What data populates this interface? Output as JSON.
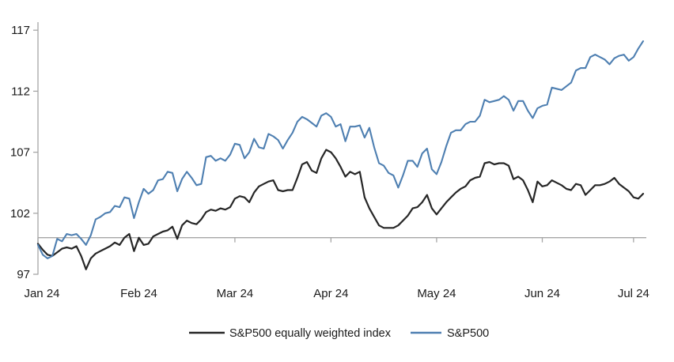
{
  "chart_data": {
    "type": "line",
    "title": "",
    "x_axis": {
      "tick_labels": [
        "Jan 24",
        "Feb 24",
        "Mar 24",
        "Apr 24",
        "May 24",
        "Jun 24",
        "Jul 24"
      ],
      "tick_day_index": [
        0,
        21,
        41,
        61,
        83,
        105,
        124
      ]
    },
    "y_axis": {
      "ticks": [
        97,
        102,
        107,
        112,
        117
      ],
      "range": [
        97,
        117
      ],
      "baseline_value": 100
    },
    "axis_color": "#a6a6a6",
    "legend_position": "bottom",
    "x": [
      "2024-01-02",
      "2024-01-03",
      "2024-01-04",
      "2024-01-05",
      "2024-01-08",
      "2024-01-09",
      "2024-01-10",
      "2024-01-11",
      "2024-01-12",
      "2024-01-16",
      "2024-01-17",
      "2024-01-18",
      "2024-01-19",
      "2024-01-22",
      "2024-01-23",
      "2024-01-24",
      "2024-01-25",
      "2024-01-26",
      "2024-01-29",
      "2024-01-30",
      "2024-01-31",
      "2024-02-01",
      "2024-02-02",
      "2024-02-05",
      "2024-02-06",
      "2024-02-07",
      "2024-02-08",
      "2024-02-09",
      "2024-02-12",
      "2024-02-13",
      "2024-02-14",
      "2024-02-15",
      "2024-02-16",
      "2024-02-20",
      "2024-02-21",
      "2024-02-22",
      "2024-02-23",
      "2024-02-26",
      "2024-02-27",
      "2024-02-28",
      "2024-02-29",
      "2024-03-01",
      "2024-03-04",
      "2024-03-05",
      "2024-03-06",
      "2024-03-07",
      "2024-03-08",
      "2024-03-11",
      "2024-03-12",
      "2024-03-13",
      "2024-03-14",
      "2024-03-15",
      "2024-03-18",
      "2024-03-19",
      "2024-03-20",
      "2024-03-21",
      "2024-03-22",
      "2024-03-25",
      "2024-03-26",
      "2024-03-27",
      "2024-03-28",
      "2024-04-01",
      "2024-04-02",
      "2024-04-03",
      "2024-04-04",
      "2024-04-05",
      "2024-04-08",
      "2024-04-09",
      "2024-04-10",
      "2024-04-11",
      "2024-04-12",
      "2024-04-15",
      "2024-04-16",
      "2024-04-17",
      "2024-04-18",
      "2024-04-19",
      "2024-04-22",
      "2024-04-23",
      "2024-04-24",
      "2024-04-25",
      "2024-04-26",
      "2024-04-29",
      "2024-04-30",
      "2024-05-01",
      "2024-05-02",
      "2024-05-03",
      "2024-05-06",
      "2024-05-07",
      "2024-05-08",
      "2024-05-09",
      "2024-05-10",
      "2024-05-13",
      "2024-05-14",
      "2024-05-15",
      "2024-05-16",
      "2024-05-17",
      "2024-05-20",
      "2024-05-21",
      "2024-05-22",
      "2024-05-23",
      "2024-05-24",
      "2024-05-28",
      "2024-05-29",
      "2024-05-30",
      "2024-05-31",
      "2024-06-03",
      "2024-06-04",
      "2024-06-05",
      "2024-06-06",
      "2024-06-07",
      "2024-06-10",
      "2024-06-11",
      "2024-06-12",
      "2024-06-13",
      "2024-06-14",
      "2024-06-17",
      "2024-06-18",
      "2024-06-20",
      "2024-06-21",
      "2024-06-24",
      "2024-06-25",
      "2024-06-26",
      "2024-06-27",
      "2024-06-28",
      "2024-07-01",
      "2024-07-02",
      "2024-07-03"
    ],
    "series": [
      {
        "name": "S&P500 equally weighted index",
        "color": "#262626",
        "values": [
          99.5,
          99.0,
          98.6,
          98.5,
          98.8,
          99.1,
          99.2,
          99.1,
          99.3,
          98.5,
          97.4,
          98.3,
          98.7,
          98.9,
          99.1,
          99.3,
          99.6,
          99.4,
          100.0,
          100.3,
          98.9,
          100.0,
          99.4,
          99.5,
          100.1,
          100.3,
          100.5,
          100.6,
          100.9,
          99.9,
          101.0,
          101.4,
          101.2,
          101.1,
          101.5,
          102.1,
          102.3,
          102.2,
          102.4,
          102.3,
          102.5,
          103.2,
          103.4,
          103.3,
          102.9,
          103.7,
          104.2,
          104.4,
          104.6,
          104.7,
          103.9,
          103.8,
          103.9,
          103.9,
          104.9,
          106.0,
          106.2,
          105.5,
          105.3,
          106.5,
          107.2,
          107.0,
          106.5,
          105.8,
          105.0,
          105.4,
          105.2,
          105.4,
          103.3,
          102.4,
          101.7,
          101.0,
          100.8,
          100.8,
          100.8,
          101.0,
          101.4,
          101.8,
          102.4,
          102.5,
          102.9,
          103.5,
          102.4,
          101.9,
          102.4,
          102.9,
          103.3,
          103.7,
          104.0,
          104.2,
          104.7,
          104.9,
          105.0,
          106.1,
          106.2,
          106.0,
          106.1,
          106.1,
          105.9,
          104.8,
          105.0,
          104.7,
          103.9,
          102.9,
          104.6,
          104.2,
          104.3,
          104.7,
          104.5,
          104.3,
          104.0,
          103.9,
          104.4,
          104.3,
          103.5,
          103.9,
          104.3,
          104.3,
          104.4,
          104.6,
          104.9,
          104.4,
          104.1,
          103.8,
          103.3,
          103.2,
          103.6
        ]
      },
      {
        "name": "S&P500",
        "color": "#4e7fb1",
        "values": [
          99.4,
          98.6,
          98.3,
          98.5,
          99.9,
          99.7,
          100.3,
          100.2,
          100.3,
          99.9,
          99.4,
          100.2,
          101.5,
          101.7,
          102.0,
          102.1,
          102.6,
          102.5,
          103.3,
          103.2,
          101.6,
          102.9,
          104.0,
          103.6,
          103.9,
          104.7,
          104.8,
          105.4,
          105.3,
          103.8,
          104.8,
          105.4,
          104.9,
          104.3,
          104.4,
          106.6,
          106.7,
          106.3,
          106.5,
          106.3,
          106.8,
          107.7,
          107.6,
          106.5,
          107.0,
          108.1,
          107.4,
          107.3,
          108.5,
          108.3,
          108.0,
          107.3,
          108.0,
          108.6,
          109.5,
          109.9,
          109.7,
          109.4,
          109.1,
          110.0,
          110.2,
          109.9,
          109.1,
          109.3,
          107.9,
          109.1,
          109.1,
          109.2,
          108.2,
          109.0,
          107.4,
          106.1,
          105.9,
          105.3,
          105.1,
          104.1,
          105.1,
          106.3,
          106.3,
          105.8,
          106.9,
          107.3,
          105.6,
          105.2,
          106.2,
          107.5,
          108.6,
          108.8,
          108.8,
          109.3,
          109.5,
          109.5,
          110.0,
          111.3,
          111.1,
          111.2,
          111.3,
          111.6,
          111.3,
          110.4,
          111.2,
          111.2,
          110.4,
          109.8,
          110.6,
          110.8,
          110.9,
          112.3,
          112.2,
          112.1,
          112.4,
          112.7,
          113.7,
          113.9,
          113.9,
          114.8,
          115.0,
          114.8,
          114.6,
          114.2,
          114.7,
          114.9,
          115.0,
          114.5,
          114.8,
          115.5,
          116.1
        ]
      }
    ]
  }
}
